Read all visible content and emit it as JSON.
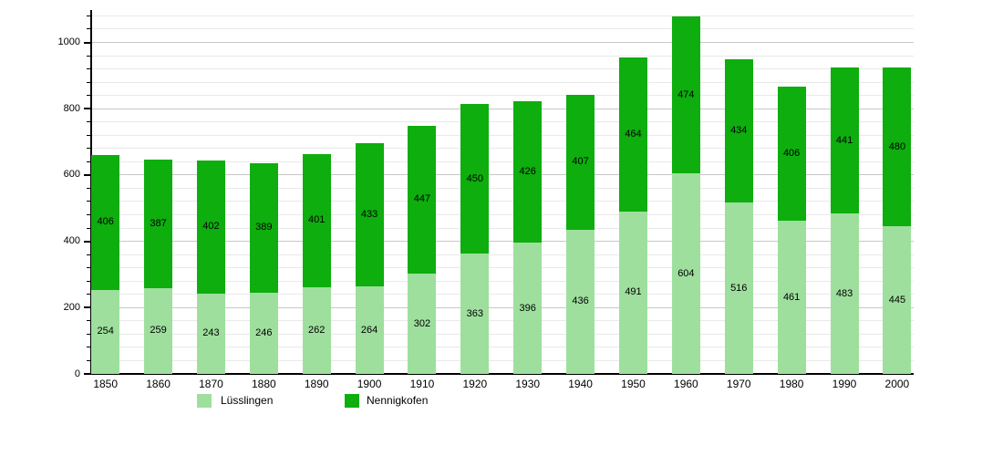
{
  "chart_data": {
    "type": "bar",
    "stacked": true,
    "title": "",
    "xlabel": "",
    "ylabel": "",
    "categories": [
      "1850",
      "1860",
      "1870",
      "1880",
      "1890",
      "1900",
      "1910",
      "1920",
      "1930",
      "1940",
      "1950",
      "1960",
      "1970",
      "1980",
      "1990",
      "2000"
    ],
    "series": [
      {
        "name": "Lüsslingen",
        "color": "#9EDF9E",
        "values": [
          254,
          259,
          243,
          246,
          262,
          264,
          302,
          363,
          396,
          436,
          491,
          604,
          516,
          461,
          483,
          445
        ]
      },
      {
        "name": "Nennigkofen",
        "color": "#0DAE0D",
        "values": [
          406,
          387,
          402,
          389,
          401,
          433,
          447,
          450,
          426,
          407,
          464,
          474,
          434,
          406,
          441,
          480
        ]
      }
    ],
    "totals": [
      660,
      646,
      645,
      635,
      663,
      697,
      749,
      813,
      822,
      843,
      955,
      1078,
      950,
      867,
      924,
      925
    ],
    "ylim": [
      0,
      1095
    ],
    "y_major_ticks": [
      0,
      200,
      400,
      600,
      800,
      1000
    ],
    "y_minor_step": 40,
    "grid": true,
    "value_labels": true,
    "legend_position": "bottom",
    "axis_color": "#000000",
    "grid_minor_color": "#e9e9e9",
    "grid_major_color": "#c8c8c8",
    "text_color": "#000000"
  }
}
